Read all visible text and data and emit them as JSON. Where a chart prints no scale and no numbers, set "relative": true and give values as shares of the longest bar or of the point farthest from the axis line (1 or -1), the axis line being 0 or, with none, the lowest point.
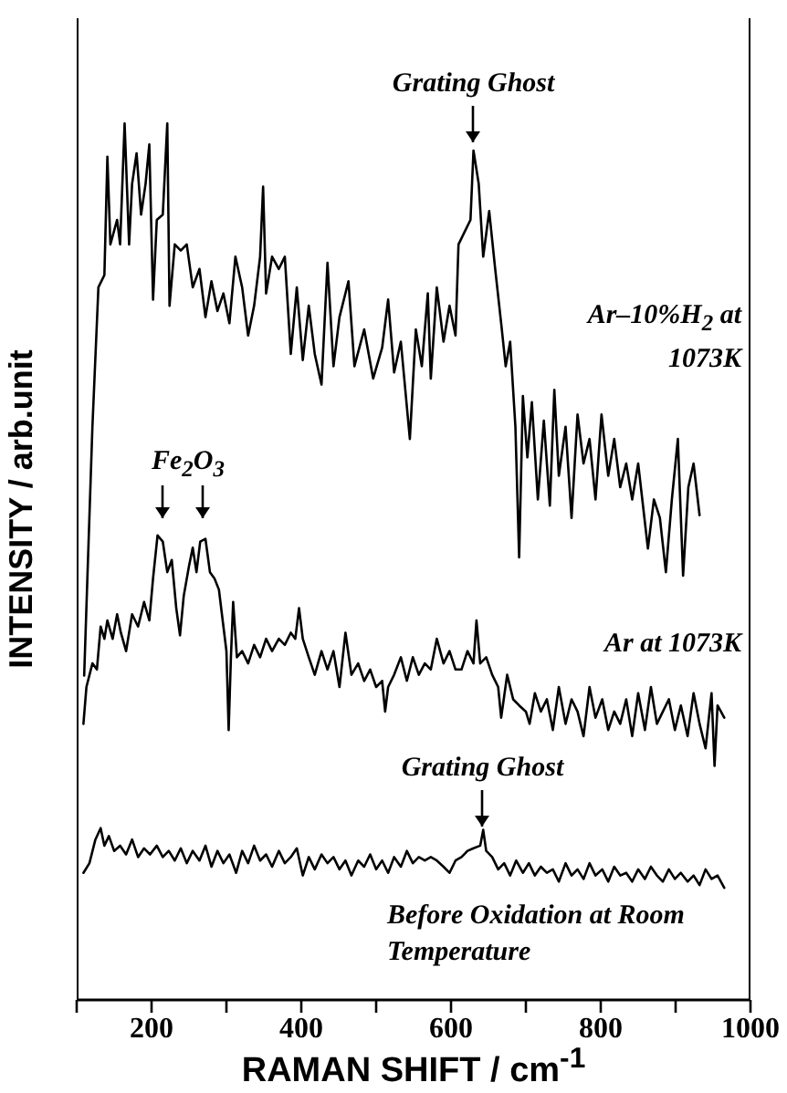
{
  "chart_data": {
    "type": "line",
    "relative": true,
    "xlabel": "RAMAN SHIFT / cm$^{-1}$",
    "ylabel": "INTENSITY / arb.unit",
    "xlim": [
      100,
      1000
    ],
    "xticks": [
      {
        "value": 100,
        "label": null
      },
      200,
      {
        "value": 300,
        "label": null
      },
      400,
      {
        "value": 500,
        "label": null
      },
      600,
      {
        "value": 700,
        "label": null
      },
      800,
      {
        "value": 900,
        "label": null
      },
      1000
    ],
    "annotations": [
      {
        "text": "Grating Ghost",
        "x": 630,
        "y": 0.97
      },
      "Fe$_{2}$O$_{3}$",
      {
        "text": "Grating Ghost",
        "x": 642,
        "y": 0.19
      }
    ],
    "series": [
      {
        "name": "Ar–10%H$_{2}$ at 1073K",
        "color": "#000000",
        "x": [
          110,
          115,
          121,
          129,
          137,
          141,
          145,
          154,
          158,
          164,
          170,
          174,
          180,
          186,
          192,
          197,
          202,
          207,
          215,
          221,
          224,
          231,
          239,
          247,
          255,
          264,
          272,
          280,
          288,
          296,
          304,
          312,
          321,
          329,
          337,
          345,
          349,
          353,
          361,
          370,
          378,
          386,
          394,
          402,
          410,
          418,
          427,
          435,
          443,
          451,
          463,
          471,
          484,
          496,
          508,
          516,
          524,
          533,
          545,
          553,
          561,
          569,
          573,
          581,
          590,
          598,
          606,
          610,
          618,
          626,
          630,
          637,
          643,
          651,
          659,
          667,
          673,
          679,
          686,
          691,
          696,
          702,
          708,
          716,
          724,
          732,
          738,
          744,
          753,
          761,
          769,
          777,
          785,
          793,
          801,
          810,
          818,
          826,
          834,
          842,
          850,
          863,
          871,
          879,
          887,
          895,
          903,
          910,
          917,
          924,
          932
        ],
        "values": [
          0.37,
          0.5,
          0.654,
          0.813,
          0.827,
          0.962,
          0.862,
          0.89,
          0.862,
          1.0,
          0.862,
          0.931,
          0.966,
          0.896,
          0.931,
          0.976,
          0.799,
          0.89,
          0.896,
          1.0,
          0.792,
          0.862,
          0.855,
          0.862,
          0.813,
          0.834,
          0.779,
          0.82,
          0.786,
          0.806,
          0.772,
          0.848,
          0.813,
          0.758,
          0.792,
          0.848,
          0.928,
          0.806,
          0.848,
          0.834,
          0.848,
          0.737,
          0.813,
          0.73,
          0.792,
          0.737,
          0.702,
          0.841,
          0.723,
          0.779,
          0.82,
          0.723,
          0.765,
          0.709,
          0.744,
          0.799,
          0.716,
          0.751,
          0.64,
          0.765,
          0.723,
          0.806,
          0.709,
          0.813,
          0.751,
          0.792,
          0.758,
          0.862,
          0.876,
          0.89,
          0.969,
          0.931,
          0.848,
          0.9,
          0.834,
          0.772,
          0.723,
          0.751,
          0.654,
          0.505,
          0.689,
          0.619,
          0.682,
          0.571,
          0.661,
          0.564,
          0.696,
          0.598,
          0.654,
          0.55,
          0.668,
          0.612,
          0.64,
          0.571,
          0.668,
          0.598,
          0.64,
          0.585,
          0.612,
          0.571,
          0.612,
          0.515,
          0.571,
          0.55,
          0.488,
          0.571,
          0.64,
          0.484,
          0.585,
          0.612,
          0.553
        ]
      },
      {
        "name": "Ar at 1073K",
        "color": "#000000",
        "x": [
          109,
          113,
          121,
          127,
          132,
          137,
          141,
          148,
          154,
          159,
          166,
          174,
          182,
          190,
          197,
          202,
          208,
          215,
          221,
          227,
          233,
          238,
          243,
          250,
          255,
          260,
          265,
          272,
          278,
          284,
          290,
          296,
          300,
          303,
          306,
          309,
          314,
          321,
          329,
          337,
          345,
          353,
          361,
          370,
          378,
          386,
          392,
          397,
          402,
          410,
          418,
          427,
          435,
          443,
          451,
          459,
          467,
          476,
          484,
          492,
          500,
          508,
          512,
          516,
          524,
          533,
          541,
          549,
          557,
          565,
          573,
          581,
          590,
          598,
          606,
          614,
          622,
          630,
          634,
          639,
          647,
          655,
          663,
          667,
          675,
          683,
          691,
          700,
          705,
          712,
          720,
          728,
          736,
          744,
          753,
          761,
          769,
          777,
          785,
          793,
          802,
          810,
          818,
          826,
          834,
          842,
          850,
          859,
          867,
          875,
          883,
          891,
          899,
          907,
          916,
          924,
          932,
          940,
          948,
          952,
          956,
          965
        ],
        "values": [
          0.315,
          0.357,
          0.384,
          0.377,
          0.426,
          0.412,
          0.433,
          0.412,
          0.44,
          0.419,
          0.398,
          0.44,
          0.426,
          0.454,
          0.433,
          0.481,
          0.53,
          0.523,
          0.488,
          0.502,
          0.447,
          0.416,
          0.461,
          0.495,
          0.516,
          0.488,
          0.523,
          0.526,
          0.488,
          0.481,
          0.468,
          0.426,
          0.398,
          0.308,
          0.391,
          0.454,
          0.391,
          0.398,
          0.384,
          0.405,
          0.391,
          0.412,
          0.398,
          0.412,
          0.405,
          0.419,
          0.412,
          0.447,
          0.412,
          0.391,
          0.371,
          0.398,
          0.377,
          0.398,
          0.357,
          0.419,
          0.371,
          0.384,
          0.364,
          0.377,
          0.357,
          0.364,
          0.329,
          0.357,
          0.371,
          0.391,
          0.364,
          0.391,
          0.371,
          0.384,
          0.377,
          0.412,
          0.384,
          0.398,
          0.377,
          0.377,
          0.398,
          0.384,
          0.433,
          0.384,
          0.391,
          0.371,
          0.357,
          0.322,
          0.371,
          0.343,
          0.336,
          0.329,
          0.315,
          0.35,
          0.329,
          0.343,
          0.308,
          0.357,
          0.315,
          0.343,
          0.329,
          0.301,
          0.357,
          0.322,
          0.343,
          0.308,
          0.329,
          0.315,
          0.343,
          0.301,
          0.35,
          0.308,
          0.357,
          0.315,
          0.329,
          0.343,
          0.308,
          0.336,
          0.301,
          0.35,
          0.315,
          0.287,
          0.35,
          0.267,
          0.336,
          0.322
        ]
      },
      {
        "name": "Before Oxidation at Room Temperature",
        "color": "#000000",
        "x": [
          109,
          117,
          125,
          132,
          137,
          143,
          150,
          158,
          166,
          174,
          182,
          190,
          198,
          207,
          215,
          223,
          231,
          239,
          247,
          255,
          264,
          272,
          280,
          288,
          296,
          304,
          313,
          321,
          329,
          337,
          345,
          353,
          361,
          370,
          378,
          386,
          394,
          402,
          410,
          418,
          427,
          435,
          443,
          451,
          459,
          467,
          476,
          484,
          492,
          500,
          508,
          516,
          524,
          533,
          541,
          549,
          557,
          565,
          573,
          581,
          590,
          598,
          606,
          614,
          622,
          630,
          639,
          643,
          647,
          655,
          663,
          671,
          679,
          687,
          696,
          704,
          712,
          720,
          728,
          736,
          744,
          753,
          761,
          769,
          777,
          785,
          793,
          802,
          810,
          818,
          826,
          834,
          842,
          850,
          859,
          867,
          875,
          883,
          891,
          899,
          907,
          916,
          924,
          932,
          940,
          948,
          956,
          965
        ],
        "values": [
          0.145,
          0.156,
          0.183,
          0.196,
          0.176,
          0.187,
          0.17,
          0.176,
          0.166,
          0.183,
          0.163,
          0.173,
          0.166,
          0.176,
          0.163,
          0.17,
          0.159,
          0.173,
          0.156,
          0.17,
          0.159,
          0.176,
          0.152,
          0.17,
          0.156,
          0.166,
          0.145,
          0.17,
          0.156,
          0.176,
          0.159,
          0.166,
          0.152,
          0.17,
          0.156,
          0.163,
          0.173,
          0.142,
          0.163,
          0.149,
          0.166,
          0.156,
          0.163,
          0.149,
          0.159,
          0.142,
          0.159,
          0.152,
          0.166,
          0.149,
          0.159,
          0.145,
          0.163,
          0.152,
          0.17,
          0.156,
          0.163,
          0.159,
          0.163,
          0.159,
          0.152,
          0.145,
          0.159,
          0.163,
          0.17,
          0.173,
          0.176,
          0.194,
          0.17,
          0.163,
          0.149,
          0.156,
          0.142,
          0.159,
          0.145,
          0.156,
          0.142,
          0.152,
          0.145,
          0.149,
          0.135,
          0.156,
          0.142,
          0.149,
          0.138,
          0.156,
          0.142,
          0.149,
          0.135,
          0.152,
          0.142,
          0.145,
          0.135,
          0.149,
          0.138,
          0.152,
          0.142,
          0.135,
          0.149,
          0.138,
          0.145,
          0.135,
          0.142,
          0.131,
          0.149,
          0.138,
          0.142,
          0.128
        ]
      }
    ]
  }
}
